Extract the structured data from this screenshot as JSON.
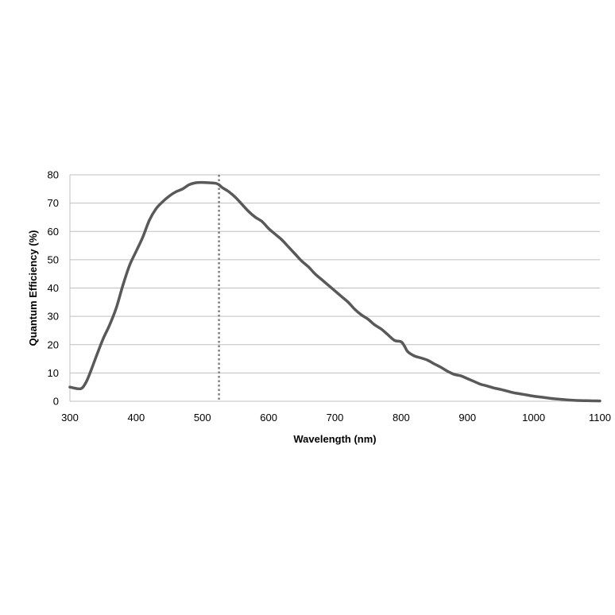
{
  "chart_data": {
    "type": "line",
    "title": "",
    "xlabel": "Wavelength (nm)",
    "ylabel": "Quantum Efficiency (%)",
    "xlim": [
      300,
      1100
    ],
    "ylim": [
      0,
      80
    ],
    "x_ticks": [
      "300",
      "400",
      "500",
      "600",
      "700",
      "800",
      "900",
      "1000",
      "1100"
    ],
    "y_ticks": [
      "0",
      "10",
      "20",
      "30",
      "40",
      "50",
      "60",
      "70",
      "80"
    ],
    "grid": "horizontal",
    "legend": "none",
    "series": [
      {
        "color": "#595959",
        "points": [
          [
            300,
            5
          ],
          [
            310,
            4.5
          ],
          [
            318,
            4.6
          ],
          [
            325,
            7
          ],
          [
            332,
            11
          ],
          [
            340,
            16
          ],
          [
            350,
            22
          ],
          [
            360,
            27
          ],
          [
            370,
            33
          ],
          [
            380,
            41
          ],
          [
            390,
            48
          ],
          [
            400,
            53
          ],
          [
            410,
            58
          ],
          [
            420,
            64
          ],
          [
            430,
            68
          ],
          [
            440,
            70.5
          ],
          [
            450,
            72.5
          ],
          [
            460,
            74
          ],
          [
            470,
            75
          ],
          [
            480,
            76.5
          ],
          [
            490,
            77.2
          ],
          [
            500,
            77.3
          ],
          [
            510,
            77.2
          ],
          [
            520,
            77
          ],
          [
            525,
            76.5
          ],
          [
            530,
            75.5
          ],
          [
            540,
            74
          ],
          [
            550,
            72
          ],
          [
            560,
            69.5
          ],
          [
            570,
            67
          ],
          [
            580,
            65
          ],
          [
            590,
            63.5
          ],
          [
            600,
            61
          ],
          [
            610,
            59
          ],
          [
            620,
            57
          ],
          [
            630,
            54.5
          ],
          [
            640,
            52
          ],
          [
            650,
            49.5
          ],
          [
            660,
            47.5
          ],
          [
            670,
            45
          ],
          [
            680,
            43
          ],
          [
            690,
            41
          ],
          [
            700,
            39
          ],
          [
            710,
            37
          ],
          [
            720,
            35
          ],
          [
            730,
            32.5
          ],
          [
            740,
            30.5
          ],
          [
            750,
            29
          ],
          [
            760,
            27
          ],
          [
            770,
            25.5
          ],
          [
            780,
            23.5
          ],
          [
            790,
            21.5
          ],
          [
            800,
            21
          ],
          [
            805,
            19.5
          ],
          [
            810,
            17.5
          ],
          [
            820,
            16
          ],
          [
            830,
            15.3
          ],
          [
            840,
            14.5
          ],
          [
            850,
            13.2
          ],
          [
            860,
            12
          ],
          [
            870,
            10.6
          ],
          [
            880,
            9.5
          ],
          [
            890,
            9
          ],
          [
            900,
            8
          ],
          [
            910,
            7
          ],
          [
            920,
            6
          ],
          [
            930,
            5.4
          ],
          [
            940,
            4.7
          ],
          [
            950,
            4.2
          ],
          [
            960,
            3.6
          ],
          [
            970,
            3
          ],
          [
            980,
            2.6
          ],
          [
            990,
            2.2
          ],
          [
            1000,
            1.8
          ],
          [
            1010,
            1.5
          ],
          [
            1020,
            1.2
          ],
          [
            1030,
            0.9
          ],
          [
            1040,
            0.7
          ],
          [
            1050,
            0.5
          ],
          [
            1060,
            0.35
          ],
          [
            1070,
            0.25
          ],
          [
            1080,
            0.2
          ],
          [
            1090,
            0.15
          ],
          [
            1100,
            0.1
          ]
        ]
      }
    ],
    "reference_line": {
      "x": 525,
      "color": "#7f7f7f",
      "style": "dotted"
    }
  }
}
